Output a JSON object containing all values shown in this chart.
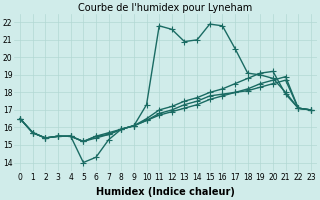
{
  "title": "Courbe de l'humidex pour Lyneham",
  "xlabel": "Humidex (Indice chaleur)",
  "ylabel": "",
  "xlim": [
    -0.5,
    23.5
  ],
  "ylim": [
    13.5,
    22.5
  ],
  "yticks": [
    14,
    15,
    16,
    17,
    18,
    19,
    20,
    21,
    22
  ],
  "xticks": [
    0,
    1,
    2,
    3,
    4,
    5,
    6,
    7,
    8,
    9,
    10,
    11,
    12,
    13,
    14,
    15,
    16,
    17,
    18,
    19,
    20,
    21,
    22,
    23
  ],
  "bg_color": "#d0ecea",
  "grid_color": "#b2d8d4",
  "line_color": "#1a6b63",
  "line_width": 1.0,
  "marker": "+",
  "marker_size": 4,
  "title_fontsize": 7,
  "tick_fontsize": 5.5,
  "xlabel_fontsize": 7,
  "lines": [
    [
      16.5,
      15.7,
      15.4,
      15.5,
      15.5,
      14.0,
      14.3,
      15.3,
      15.9,
      16.1,
      17.3,
      21.8,
      21.6,
      20.9,
      21.0,
      21.9,
      21.8,
      20.5,
      19.1,
      19.0,
      18.8,
      18.0,
      17.1,
      17.0
    ],
    [
      16.5,
      15.7,
      15.4,
      15.5,
      15.5,
      15.2,
      15.4,
      15.6,
      15.9,
      16.1,
      16.4,
      16.7,
      16.9,
      17.1,
      17.3,
      17.6,
      17.8,
      18.0,
      18.2,
      18.5,
      18.7,
      18.9,
      17.1,
      17.0
    ],
    [
      16.5,
      15.7,
      15.4,
      15.5,
      15.5,
      15.2,
      15.5,
      15.7,
      15.9,
      16.1,
      16.5,
      17.0,
      17.2,
      17.5,
      17.7,
      18.0,
      18.2,
      18.5,
      18.8,
      19.1,
      19.2,
      17.9,
      17.1,
      17.0
    ],
    [
      16.5,
      15.7,
      15.4,
      15.5,
      15.5,
      15.2,
      15.5,
      15.6,
      15.9,
      16.1,
      16.4,
      16.8,
      17.0,
      17.3,
      17.5,
      17.8,
      17.9,
      18.0,
      18.1,
      18.3,
      18.5,
      18.7,
      17.1,
      17.0
    ]
  ]
}
